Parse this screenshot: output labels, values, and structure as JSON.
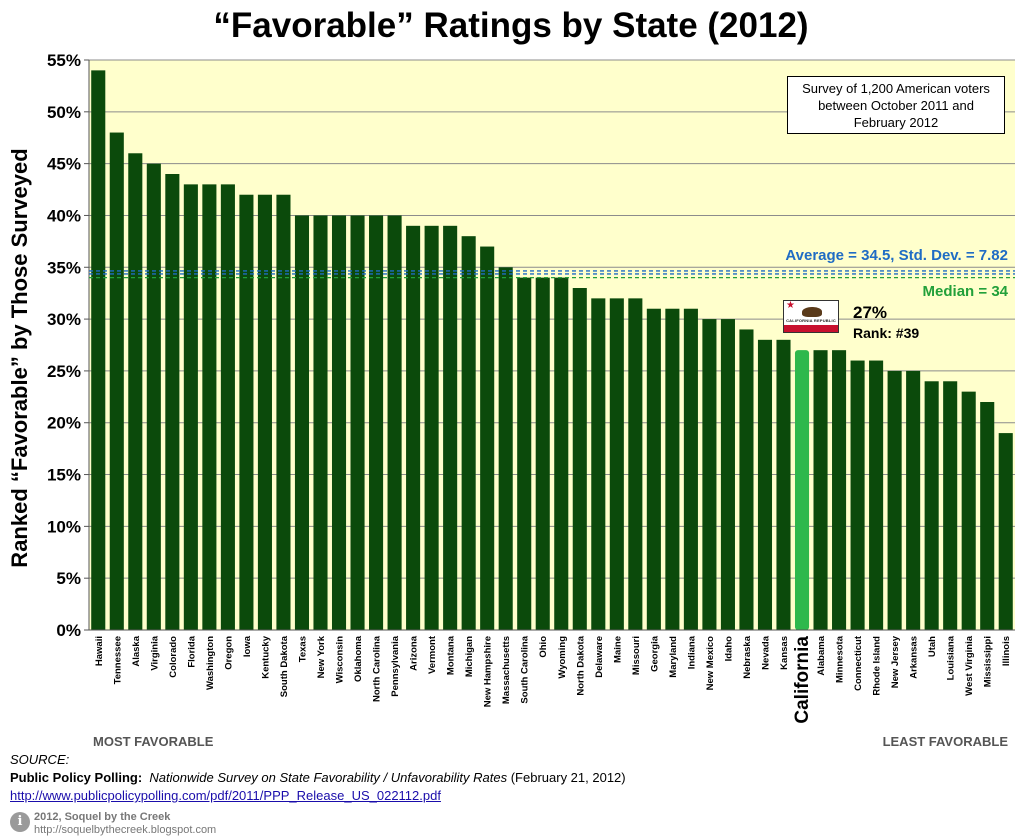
{
  "chart_data": {
    "type": "bar",
    "title": "“Favorable” Ratings by State (2012)",
    "ylabel": "Ranked “Favorable” by Those Surveyed",
    "xlabel": "",
    "ylim": [
      0,
      55
    ],
    "yticks": [
      "0%",
      "5%",
      "10%",
      "15%",
      "20%",
      "25%",
      "30%",
      "35%",
      "40%",
      "45%",
      "50%",
      "55%"
    ],
    "categories": [
      "Hawaii",
      "Tennessee",
      "Alaska",
      "Virginia",
      "Colorado",
      "Florida",
      "Washington",
      "Oregon",
      "Iowa",
      "Kentucky",
      "South Dakota",
      "Texas",
      "New York",
      "Wisconsin",
      "Oklahoma",
      "North Carolina",
      "Pennsylvania",
      "Arizona",
      "Vermont",
      "Montana",
      "Michigan",
      "New Hampshire",
      "Massachusetts",
      "South Carolina",
      "Ohio",
      "Wyoming",
      "North Dakota",
      "Delaware",
      "Maine",
      "Missouri",
      "Georgia",
      "Maryland",
      "Indiana",
      "New Mexico",
      "Idaho",
      "Nebraska",
      "Nevada",
      "Kansas",
      "California",
      "Alabama",
      "Minnesota",
      "Connecticut",
      "Rhode Island",
      "New Jersey",
      "Arkansas",
      "Utah",
      "Louisiana",
      "West Virginia",
      "Mississippi",
      "Illinois"
    ],
    "values": [
      54,
      48,
      46,
      45,
      44,
      43,
      43,
      43,
      42,
      42,
      42,
      40,
      40,
      40,
      40,
      40,
      40,
      39,
      39,
      39,
      38,
      37,
      35,
      34,
      34,
      34,
      33,
      32,
      32,
      32,
      31,
      31,
      31,
      30,
      30,
      29,
      28,
      28,
      27,
      27,
      27,
      26,
      26,
      25,
      25,
      24,
      24,
      23,
      22,
      19
    ],
    "highlight": "California",
    "average": 34.5,
    "median": 34,
    "grid": true,
    "colors": {
      "bar": "#0b4a0b",
      "highlight_bar": "#2eb84c",
      "plot_background": "#ffffcc",
      "average_line": "#1f6cc4",
      "median_line": "#22a03a"
    }
  },
  "annotations": {
    "survey_note": "Survey of 1,200 American voters between October 2011 and February 2012",
    "average_label": "Average = 34.5, Std. Dev. = 7.82",
    "median_label": "Median = 34",
    "flag_text": "CALIFORNIA REPUBLIC",
    "california_pct": "27%",
    "california_rank": "Rank: #39",
    "most_favorable": "MOST FAVORABLE",
    "least_favorable": "LEAST FAVORABLE"
  },
  "source": {
    "label": "SOURCE:",
    "org": "Public Policy Polling:",
    "report": "Nationwide Survey on State Favorability / Unfavorability Rates",
    "date": "(February 21, 2012)",
    "url": "http://www.publicpolicypolling.com/pdf/2011/PPP_Release_US_022112.pdf"
  },
  "footer": {
    "icon": "info-icon",
    "icon_glyph": "i",
    "copyright": "2012, Soquel by the Creek",
    "url": "http://soquelbythecreek.blogspot.com"
  }
}
